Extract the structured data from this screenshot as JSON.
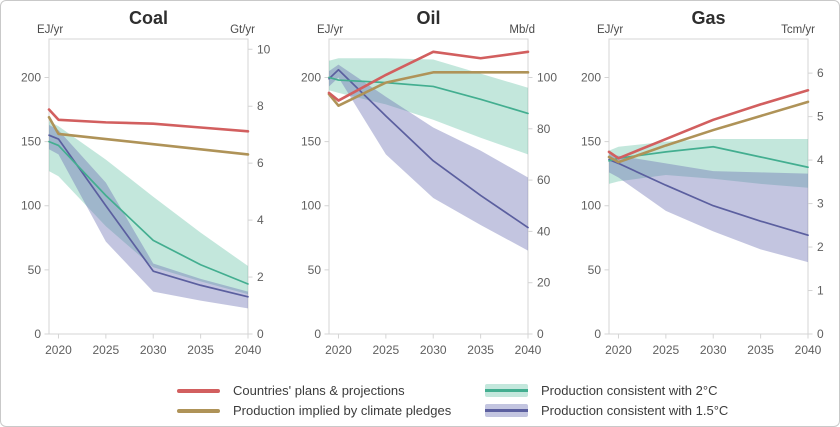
{
  "colors": {
    "plans": "#d25f5f",
    "pledges": "#af9358",
    "two_deg_line": "#43ae90",
    "two_deg_band": "rgba(84,187,156,0.35)",
    "one_five_line": "#5b5f9f",
    "one_five_band": "rgba(106,110,177,0.40)",
    "axis_line": "#d4d4d4",
    "tick_label": "#606060",
    "unit_label": "#4a4a4a",
    "title": "#2e2e2e",
    "frame_border": "#c9c9c9"
  },
  "chart_data": [
    {
      "type": "line",
      "title": "Coal",
      "left_axis": {
        "unit": "EJ/yr",
        "ticks": [
          0,
          50,
          100,
          150,
          200
        ],
        "range": [
          0,
          230
        ]
      },
      "right_axis": {
        "unit": "Gt/yr",
        "ticks": [
          0,
          2,
          4,
          6,
          8,
          10
        ],
        "ej_per_unit": 22.2
      },
      "x": [
        2019,
        2020,
        2025,
        2030,
        2035,
        2040
      ],
      "x_ticks": [
        2020,
        2025,
        2030,
        2035,
        2040
      ],
      "series": [
        {
          "key": "plans",
          "label": "Countries' plans & projections",
          "line_color": "plans",
          "values": [
            175,
            167,
            165,
            164,
            161,
            158
          ]
        },
        {
          "key": "pledges",
          "label": "Production implied by climate pledges",
          "line_color": "pledges",
          "values": [
            169,
            156,
            152,
            148,
            144,
            140
          ]
        },
        {
          "key": "two-deg",
          "label": "Production consistent with 2°C",
          "line_color": "two_deg_line",
          "band_color": "two_deg_band",
          "values": [
            150,
            147,
            108,
            73,
            54,
            39
          ],
          "band_hi": [
            166,
            162,
            136,
            107,
            79,
            53
          ],
          "band_lo": [
            127,
            123,
            84,
            52,
            41,
            31
          ]
        },
        {
          "key": "one-five",
          "label": "Production consistent with 1.5°C",
          "line_color": "one_five_line",
          "band_color": "one_five_band",
          "values": [
            155,
            152,
            100,
            49,
            38,
            29
          ],
          "band_hi": [
            163,
            159,
            118,
            55,
            43,
            33
          ],
          "band_lo": [
            144,
            140,
            72,
            33,
            26,
            20
          ]
        }
      ]
    },
    {
      "type": "line",
      "title": "Oil",
      "left_axis": {
        "unit": "EJ/yr",
        "ticks": [
          0,
          50,
          100,
          150,
          200
        ],
        "range": [
          0,
          230
        ]
      },
      "right_axis": {
        "unit": "Mb/d",
        "ticks": [
          0,
          20,
          40,
          60,
          80,
          100
        ],
        "ej_per_unit": 2
      },
      "x": [
        2019,
        2020,
        2025,
        2030,
        2035,
        2040
      ],
      "x_ticks": [
        2020,
        2025,
        2030,
        2035,
        2040
      ],
      "series": [
        {
          "key": "plans",
          "label": "Countries' plans & projections",
          "line_color": "plans",
          "values": [
            188,
            182,
            202,
            220,
            215,
            220
          ]
        },
        {
          "key": "pledges",
          "label": "Production implied by climate pledges",
          "line_color": "pledges",
          "values": [
            187,
            178,
            196,
            204,
            204,
            204
          ]
        },
        {
          "key": "two-deg",
          "label": "Production consistent with 2°C",
          "line_color": "two_deg_line",
          "band_color": "two_deg_band",
          "values": [
            200,
            198,
            196,
            193,
            183,
            172
          ],
          "band_hi": [
            213,
            215,
            215,
            214,
            203,
            192
          ],
          "band_lo": [
            190,
            188,
            179,
            167,
            153,
            140
          ]
        },
        {
          "key": "one-five",
          "label": "Production consistent with 1.5°C",
          "line_color": "one_five_line",
          "band_color": "one_five_band",
          "values": [
            199,
            206,
            170,
            135,
            108,
            83
          ],
          "band_hi": [
            205,
            210,
            185,
            161,
            143,
            122
          ],
          "band_lo": [
            193,
            200,
            140,
            106,
            85,
            65
          ]
        }
      ]
    },
    {
      "type": "line",
      "title": "Gas",
      "left_axis": {
        "unit": "EJ/yr",
        "ticks": [
          0,
          50,
          100,
          150,
          200
        ],
        "range": [
          0,
          230
        ]
      },
      "right_axis": {
        "unit": "Tcm/yr",
        "ticks": [
          0,
          1,
          2,
          3,
          4,
          5,
          6
        ],
        "ej_per_unit": 33.9
      },
      "x": [
        2019,
        2020,
        2025,
        2030,
        2035,
        2040
      ],
      "x_ticks": [
        2020,
        2025,
        2030,
        2035,
        2040
      ],
      "series": [
        {
          "key": "plans",
          "label": "Countries' plans & projections",
          "line_color": "plans",
          "values": [
            142,
            137,
            152,
            167,
            179,
            190
          ]
        },
        {
          "key": "pledges",
          "label": "Production implied by climate pledges",
          "line_color": "pledges",
          "values": [
            138,
            134,
            147,
            159,
            170,
            181
          ]
        },
        {
          "key": "two-deg",
          "label": "Production consistent with 2°C",
          "line_color": "two_deg_line",
          "band_color": "two_deg_band",
          "values": [
            135,
            137,
            142,
            146,
            138,
            130
          ],
          "band_hi": [
            143,
            146,
            150,
            152,
            152,
            152
          ],
          "band_lo": [
            117,
            119,
            124,
            121,
            117,
            114
          ]
        },
        {
          "key": "one-five",
          "label": "Production consistent with 1.5°C",
          "line_color": "one_five_line",
          "band_color": "one_five_band",
          "values": [
            136,
            133,
            116,
            100,
            88,
            77
          ],
          "band_hi": [
            140,
            139,
            133,
            127,
            126,
            125
          ],
          "band_lo": [
            126,
            122,
            96,
            80,
            66,
            56
          ]
        }
      ]
    }
  ],
  "legend": {
    "items": [
      {
        "id": "plans",
        "label": "Countries' plans & projections",
        "swatch": "line",
        "color_key": "plans"
      },
      {
        "id": "pledges",
        "label": "Production implied by climate pledges",
        "swatch": "line",
        "color_key": "pledges"
      },
      {
        "id": "two-deg",
        "label": "Production consistent with 2°C",
        "swatch": "band",
        "band_color_key": "two_deg_band",
        "line_color_key": "two_deg_line"
      },
      {
        "id": "one-five",
        "label": "Production consistent with 1.5°C",
        "swatch": "band",
        "band_color_key": "one_five_band",
        "line_color_key": "one_five_line"
      }
    ]
  }
}
